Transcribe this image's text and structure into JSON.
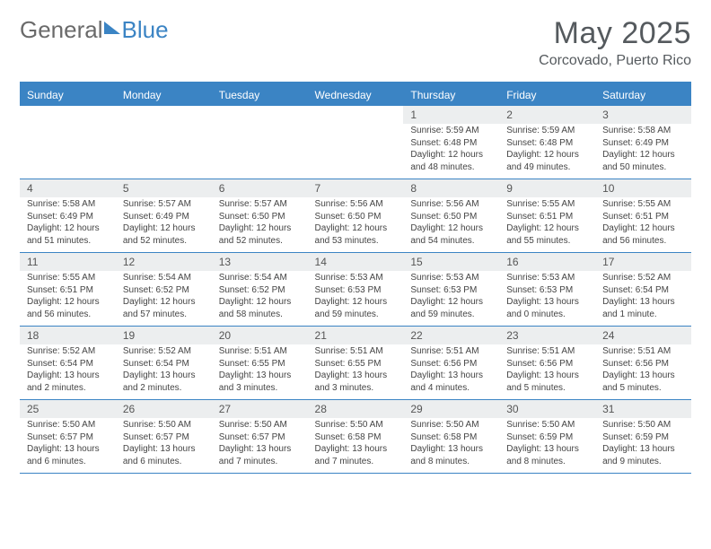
{
  "colors": {
    "brand_blue": "#3b84c4",
    "header_row_bg": "#3b84c4",
    "table_border": "#3b84c4",
    "daynum_bg": "#eceeef",
    "logo_gray": "#6a6a6a",
    "title_gray": "#555a5e"
  },
  "logo": {
    "part1": "General",
    "part2": "Blue"
  },
  "title": "May 2025",
  "location": "Corcovado, Puerto Rico",
  "weekdays": [
    "Sunday",
    "Monday",
    "Tuesday",
    "Wednesday",
    "Thursday",
    "Friday",
    "Saturday"
  ],
  "weeks": [
    [
      {
        "num": "",
        "lines": [
          "",
          "",
          "",
          ""
        ]
      },
      {
        "num": "",
        "lines": [
          "",
          "",
          "",
          ""
        ]
      },
      {
        "num": "",
        "lines": [
          "",
          "",
          "",
          ""
        ]
      },
      {
        "num": "",
        "lines": [
          "",
          "",
          "",
          ""
        ]
      },
      {
        "num": "1",
        "lines": [
          "Sunrise: 5:59 AM",
          "Sunset: 6:48 PM",
          "Daylight: 12 hours",
          "and 48 minutes."
        ]
      },
      {
        "num": "2",
        "lines": [
          "Sunrise: 5:59 AM",
          "Sunset: 6:48 PM",
          "Daylight: 12 hours",
          "and 49 minutes."
        ]
      },
      {
        "num": "3",
        "lines": [
          "Sunrise: 5:58 AM",
          "Sunset: 6:49 PM",
          "Daylight: 12 hours",
          "and 50 minutes."
        ]
      }
    ],
    [
      {
        "num": "4",
        "lines": [
          "Sunrise: 5:58 AM",
          "Sunset: 6:49 PM",
          "Daylight: 12 hours",
          "and 51 minutes."
        ]
      },
      {
        "num": "5",
        "lines": [
          "Sunrise: 5:57 AM",
          "Sunset: 6:49 PM",
          "Daylight: 12 hours",
          "and 52 minutes."
        ]
      },
      {
        "num": "6",
        "lines": [
          "Sunrise: 5:57 AM",
          "Sunset: 6:50 PM",
          "Daylight: 12 hours",
          "and 52 minutes."
        ]
      },
      {
        "num": "7",
        "lines": [
          "Sunrise: 5:56 AM",
          "Sunset: 6:50 PM",
          "Daylight: 12 hours",
          "and 53 minutes."
        ]
      },
      {
        "num": "8",
        "lines": [
          "Sunrise: 5:56 AM",
          "Sunset: 6:50 PM",
          "Daylight: 12 hours",
          "and 54 minutes."
        ]
      },
      {
        "num": "9",
        "lines": [
          "Sunrise: 5:55 AM",
          "Sunset: 6:51 PM",
          "Daylight: 12 hours",
          "and 55 minutes."
        ]
      },
      {
        "num": "10",
        "lines": [
          "Sunrise: 5:55 AM",
          "Sunset: 6:51 PM",
          "Daylight: 12 hours",
          "and 56 minutes."
        ]
      }
    ],
    [
      {
        "num": "11",
        "lines": [
          "Sunrise: 5:55 AM",
          "Sunset: 6:51 PM",
          "Daylight: 12 hours",
          "and 56 minutes."
        ]
      },
      {
        "num": "12",
        "lines": [
          "Sunrise: 5:54 AM",
          "Sunset: 6:52 PM",
          "Daylight: 12 hours",
          "and 57 minutes."
        ]
      },
      {
        "num": "13",
        "lines": [
          "Sunrise: 5:54 AM",
          "Sunset: 6:52 PM",
          "Daylight: 12 hours",
          "and 58 minutes."
        ]
      },
      {
        "num": "14",
        "lines": [
          "Sunrise: 5:53 AM",
          "Sunset: 6:53 PM",
          "Daylight: 12 hours",
          "and 59 minutes."
        ]
      },
      {
        "num": "15",
        "lines": [
          "Sunrise: 5:53 AM",
          "Sunset: 6:53 PM",
          "Daylight: 12 hours",
          "and 59 minutes."
        ]
      },
      {
        "num": "16",
        "lines": [
          "Sunrise: 5:53 AM",
          "Sunset: 6:53 PM",
          "Daylight: 13 hours",
          "and 0 minutes."
        ]
      },
      {
        "num": "17",
        "lines": [
          "Sunrise: 5:52 AM",
          "Sunset: 6:54 PM",
          "Daylight: 13 hours",
          "and 1 minute."
        ]
      }
    ],
    [
      {
        "num": "18",
        "lines": [
          "Sunrise: 5:52 AM",
          "Sunset: 6:54 PM",
          "Daylight: 13 hours",
          "and 2 minutes."
        ]
      },
      {
        "num": "19",
        "lines": [
          "Sunrise: 5:52 AM",
          "Sunset: 6:54 PM",
          "Daylight: 13 hours",
          "and 2 minutes."
        ]
      },
      {
        "num": "20",
        "lines": [
          "Sunrise: 5:51 AM",
          "Sunset: 6:55 PM",
          "Daylight: 13 hours",
          "and 3 minutes."
        ]
      },
      {
        "num": "21",
        "lines": [
          "Sunrise: 5:51 AM",
          "Sunset: 6:55 PM",
          "Daylight: 13 hours",
          "and 3 minutes."
        ]
      },
      {
        "num": "22",
        "lines": [
          "Sunrise: 5:51 AM",
          "Sunset: 6:56 PM",
          "Daylight: 13 hours",
          "and 4 minutes."
        ]
      },
      {
        "num": "23",
        "lines": [
          "Sunrise: 5:51 AM",
          "Sunset: 6:56 PM",
          "Daylight: 13 hours",
          "and 5 minutes."
        ]
      },
      {
        "num": "24",
        "lines": [
          "Sunrise: 5:51 AM",
          "Sunset: 6:56 PM",
          "Daylight: 13 hours",
          "and 5 minutes."
        ]
      }
    ],
    [
      {
        "num": "25",
        "lines": [
          "Sunrise: 5:50 AM",
          "Sunset: 6:57 PM",
          "Daylight: 13 hours",
          "and 6 minutes."
        ]
      },
      {
        "num": "26",
        "lines": [
          "Sunrise: 5:50 AM",
          "Sunset: 6:57 PM",
          "Daylight: 13 hours",
          "and 6 minutes."
        ]
      },
      {
        "num": "27",
        "lines": [
          "Sunrise: 5:50 AM",
          "Sunset: 6:57 PM",
          "Daylight: 13 hours",
          "and 7 minutes."
        ]
      },
      {
        "num": "28",
        "lines": [
          "Sunrise: 5:50 AM",
          "Sunset: 6:58 PM",
          "Daylight: 13 hours",
          "and 7 minutes."
        ]
      },
      {
        "num": "29",
        "lines": [
          "Sunrise: 5:50 AM",
          "Sunset: 6:58 PM",
          "Daylight: 13 hours",
          "and 8 minutes."
        ]
      },
      {
        "num": "30",
        "lines": [
          "Sunrise: 5:50 AM",
          "Sunset: 6:59 PM",
          "Daylight: 13 hours",
          "and 8 minutes."
        ]
      },
      {
        "num": "31",
        "lines": [
          "Sunrise: 5:50 AM",
          "Sunset: 6:59 PM",
          "Daylight: 13 hours",
          "and 9 minutes."
        ]
      }
    ]
  ]
}
